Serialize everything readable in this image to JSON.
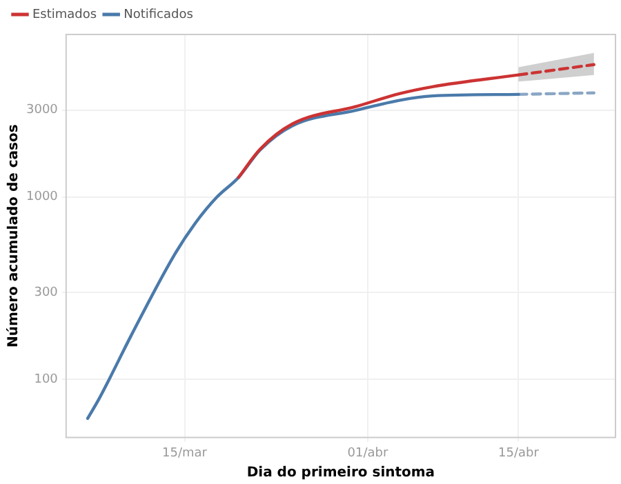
{
  "chart_data": {
    "type": "line",
    "xlabel": "Dia do primeiro sintoma",
    "ylabel": "Número acumulado de casos",
    "log": "y",
    "grid": true,
    "legend": "top left",
    "marker": "none",
    "xlim": [
      "--03-04",
      "--04-24"
    ],
    "ylim": [
      48,
      7800
    ],
    "xticks": [
      {
        "value": "--03-15",
        "label": "15/mar"
      },
      {
        "value": "--04-01",
        "label": "01/abr"
      },
      {
        "value": "--04-15",
        "label": "15/abr"
      }
    ],
    "yticks": [
      100,
      300,
      1000,
      3000
    ],
    "series": [
      {
        "name": "Estimados",
        "color": "#cc3333",
        "line_style": "solid",
        "x": [
          "--03-20",
          "--03-22",
          "--03-25",
          "--03-31",
          "--04-04",
          "--04-07",
          "--04-15"
        ],
        "values": [
          1280,
          1830,
          2520,
          3150,
          3700,
          4030,
          4680
        ]
      },
      {
        "color": "#cc3333",
        "line_style": "dashed",
        "x": [
          "--04-15",
          "--04-22"
        ],
        "values": [
          4680,
          5330
        ],
        "lower": [
          4300,
          4680
        ],
        "upper": [
          5160,
          6180
        ]
      },
      {
        "name": "Notificados",
        "color": "#4a7aaa",
        "line_style": "solid",
        "x": [
          "--03-06",
          "--03-07",
          "--03-08",
          "--03-10",
          "--03-14",
          "--03-16",
          "--03-18",
          "--03-20",
          "--03-22",
          "--03-25",
          "--03-31",
          "--04-04",
          "--04-07",
          "--04-15"
        ],
        "values": [
          61,
          77,
          100,
          172,
          476,
          720,
          1000,
          1280,
          1810,
          2460,
          3000,
          3400,
          3590,
          3660
        ]
      },
      {
        "color": "#8aa6c4",
        "line_style": "dashed",
        "x": [
          "--04-15",
          "--04-22"
        ],
        "values": [
          3660,
          3730
        ]
      }
    ]
  }
}
